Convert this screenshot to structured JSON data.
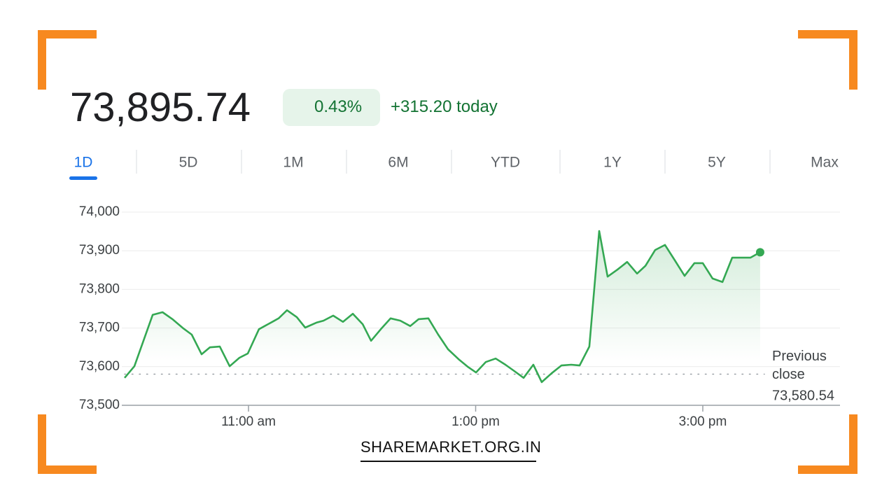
{
  "price": "73,895.74",
  "change_pct": "0.43%",
  "change_abs": "+315.20 today",
  "tabs": [
    "1D",
    "5D",
    "1M",
    "6M",
    "YTD",
    "1Y",
    "5Y",
    "Max"
  ],
  "active_tab": 0,
  "watermark": "SHAREMARKET.ORG.IN",
  "chart_data": {
    "type": "line",
    "x": [
      9.909,
      9.995,
      10.156,
      10.243,
      10.33,
      10.427,
      10.5,
      10.587,
      10.66,
      10.747,
      10.834,
      10.92,
      10.994,
      11.092,
      11.216,
      11.265,
      11.339,
      11.425,
      11.499,
      11.598,
      11.66,
      11.746,
      11.832,
      11.918,
      12.005,
      12.079,
      12.165,
      12.251,
      12.337,
      12.424,
      12.498,
      12.584,
      12.67,
      12.757,
      12.855,
      12.929,
      13.003,
      13.089,
      13.176,
      13.262,
      13.348,
      13.422,
      13.508,
      13.582,
      13.669,
      13.755,
      13.841,
      13.915,
      14.001,
      14.088,
      14.162,
      14.248,
      14.334,
      14.421,
      14.495,
      14.581,
      14.667,
      14.754,
      14.84,
      14.926,
      15.0,
      15.086,
      15.173,
      15.259,
      15.345,
      15.419,
      15.505
    ],
    "series": [
      {
        "color": "#34a853",
        "values": [
          73571,
          73601,
          73734,
          73741,
          73723,
          73699,
          73683,
          73632,
          73650,
          73652,
          73601,
          73623,
          73634,
          73697,
          73717,
          73725,
          73746,
          73728,
          73701,
          73714,
          73719,
          73732,
          73716,
          73737,
          73710,
          73667,
          73697,
          73725,
          73719,
          73705,
          73723,
          73725,
          73683,
          73645,
          73618,
          73600,
          73585,
          73612,
          73621,
          73605,
          73587,
          73571,
          73605,
          73560,
          73583,
          73603,
          73605,
          73603,
          73652,
          73951,
          73833,
          73851,
          73871,
          73841,
          73861,
          73902,
          73915,
          73875,
          73835,
          73868,
          73868,
          73828,
          73819,
          73882,
          73882,
          73882,
          73896
        ]
      }
    ],
    "xlim": [
      9.909,
      16.208
    ],
    "xticks": [
      {
        "value": 11,
        "label": "11:00 am"
      },
      {
        "value": 13,
        "label": "1:00 pm"
      },
      {
        "value": 15,
        "label": "3:00 pm"
      }
    ],
    "ylim": [
      73500,
      74000
    ],
    "yticks": [
      {
        "value": 73500,
        "label": "73,500"
      },
      {
        "value": 73600,
        "label": "73,600"
      },
      {
        "value": 73700,
        "label": "73,700"
      },
      {
        "value": 73800,
        "label": "73,800"
      },
      {
        "value": 73900,
        "label": "73,900"
      },
      {
        "value": 74000,
        "label": "74,000"
      }
    ],
    "grid": true,
    "previous_close_title": "Previous close",
    "previous_close": {
      "value": 73580.54,
      "label": "73,580.54"
    }
  }
}
